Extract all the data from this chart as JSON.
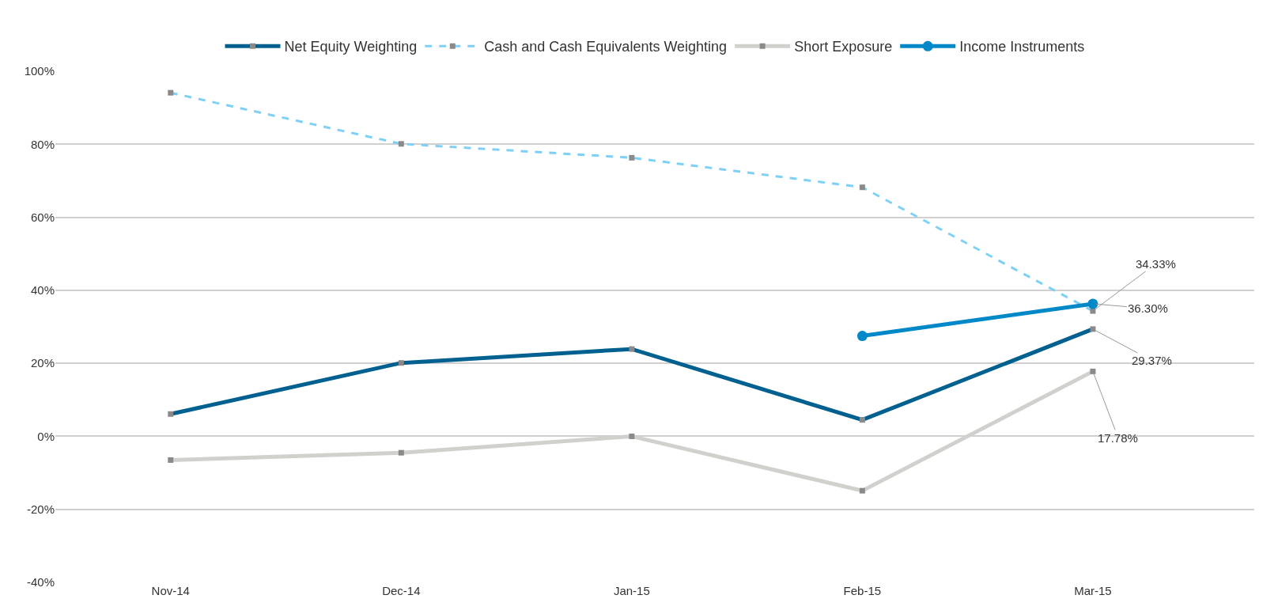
{
  "chart_data": {
    "type": "line",
    "categories": [
      "Nov-14",
      "Dec-14",
      "Jan-15",
      "Feb-15",
      "Mar-15"
    ],
    "series": [
      {
        "name": "Net Equity Weighting",
        "color": "#00608f",
        "marker": "square",
        "line_style": "solid",
        "values": [
          6.1,
          20.1,
          23.9,
          4.5,
          29.37
        ],
        "value_labels": [
          null,
          null,
          null,
          null,
          "29.37%"
        ]
      },
      {
        "name": "Cash and Cash Equivalents Weighting",
        "color": "#7fd0f5",
        "marker": "square",
        "line_style": "dashed",
        "values": [
          94.1,
          80.1,
          76.3,
          68.2,
          34.33
        ],
        "value_labels": [
          null,
          null,
          null,
          null,
          "34.33%"
        ]
      },
      {
        "name": "Short Exposure",
        "color": "#d0d0cc",
        "marker": "square",
        "line_style": "solid",
        "values": [
          -6.5,
          -4.5,
          0,
          -14.9,
          17.78
        ],
        "value_labels": [
          null,
          null,
          null,
          null,
          "17.78%"
        ]
      },
      {
        "name": "Income Instruments",
        "color": "#0088c8",
        "marker": "circle",
        "line_style": "solid",
        "values": [
          null,
          null,
          null,
          27.5,
          36.3
        ],
        "value_labels": [
          null,
          null,
          null,
          null,
          "36.30%"
        ]
      }
    ],
    "ylim": [
      -40,
      100
    ],
    "yticks": [
      {
        "value": -40,
        "label": "-40%"
      },
      {
        "value": -20,
        "label": "-20%"
      },
      {
        "value": 0,
        "label": "0%"
      },
      {
        "value": 20,
        "label": "20%"
      },
      {
        "value": 40,
        "label": "40%"
      },
      {
        "value": 60,
        "label": "60%"
      },
      {
        "value": 80,
        "label": "80%"
      },
      {
        "value": 100,
        "label": "100%"
      }
    ],
    "grid": "y",
    "legend": "top"
  }
}
